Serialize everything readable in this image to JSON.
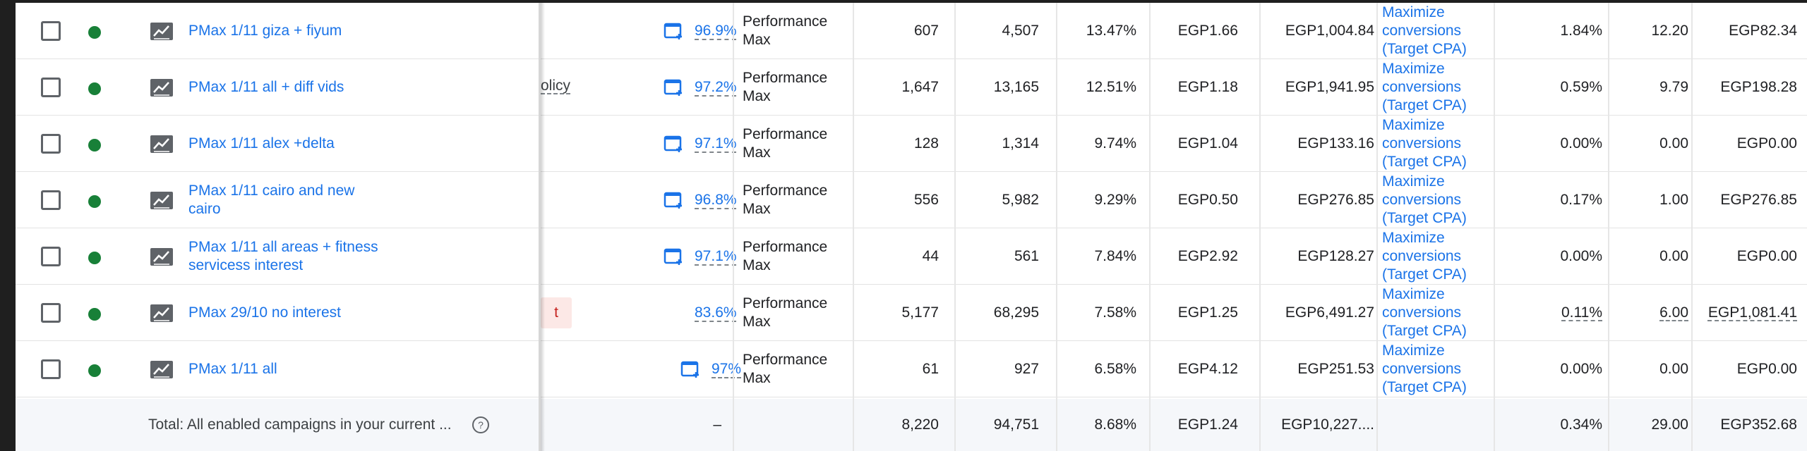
{
  "rows": [
    {
      "name_line1": "PMax 1/11 giza + fiyum",
      "name_line2": "",
      "optimization": "96.9%",
      "type_line1": "Performance",
      "type_line2": "Max",
      "conversions": "607",
      "clicks": "4,507",
      "ctr": "13.47%",
      "avg_cpc": "EGP1.66",
      "cost": "EGP1,004.84",
      "bid_line1": "Maximize",
      "bid_line2": "conversions",
      "bid_line3": "(Target CPA)",
      "conv_rate": "1.84%",
      "conversions2": "12.20",
      "cost_per_conv": "EGP82.34",
      "fragment": ""
    },
    {
      "name_line1": "PMax 1/11 all + diff vids",
      "name_line2": "",
      "optimization": "97.2%",
      "type_line1": "Performance",
      "type_line2": "Max",
      "conversions": "1,647",
      "clicks": "13,165",
      "ctr": "12.51%",
      "avg_cpc": "EGP1.18",
      "cost": "EGP1,941.95",
      "bid_line1": "Maximize",
      "bid_line2": "conversions",
      "bid_line3": "(Target CPA)",
      "conv_rate": "0.59%",
      "conversions2": "9.79",
      "cost_per_conv": "EGP198.28",
      "fragment": "olicy"
    },
    {
      "name_line1": "PMax 1/11 alex +delta",
      "name_line2": "",
      "optimization": "97.1%",
      "type_line1": "Performance",
      "type_line2": "Max",
      "conversions": "128",
      "clicks": "1,314",
      "ctr": "9.74%",
      "avg_cpc": "EGP1.04",
      "cost": "EGP133.16",
      "bid_line1": "Maximize",
      "bid_line2": "conversions",
      "bid_line3": "(Target CPA)",
      "conv_rate": "0.00%",
      "conversions2": "0.00",
      "cost_per_conv": "EGP0.00",
      "fragment": ""
    },
    {
      "name_line1": "PMax 1/11 cairo and new",
      "name_line2": "cairo",
      "optimization": "96.8%",
      "type_line1": "Performance",
      "type_line2": "Max",
      "conversions": "556",
      "clicks": "5,982",
      "ctr": "9.29%",
      "avg_cpc": "EGP0.50",
      "cost": "EGP276.85",
      "bid_line1": "Maximize",
      "bid_line2": "conversions",
      "bid_line3": "(Target CPA)",
      "conv_rate": "0.17%",
      "conversions2": "1.00",
      "cost_per_conv": "EGP276.85",
      "fragment": ""
    },
    {
      "name_line1": "PMax 1/11 all areas + fitness",
      "name_line2": "servicess interest",
      "optimization": "97.1%",
      "type_line1": "Performance",
      "type_line2": "Max",
      "conversions": "44",
      "clicks": "561",
      "ctr": "7.84%",
      "avg_cpc": "EGP2.92",
      "cost": "EGP128.27",
      "bid_line1": "Maximize",
      "bid_line2": "conversions",
      "bid_line3": "(Target CPA)",
      "conv_rate": "0.00%",
      "conversions2": "0.00",
      "cost_per_conv": "EGP0.00",
      "fragment": ""
    },
    {
      "name_line1": "PMax 29/10 no interest",
      "name_line2": "",
      "optimization": "83.6%",
      "type_line1": "Performance",
      "type_line2": "Max",
      "conversions": "5,177",
      "clicks": "68,295",
      "ctr": "7.58%",
      "avg_cpc": "EGP1.25",
      "cost": "EGP6,491.27",
      "bid_line1": "Maximize",
      "bid_line2": "conversions",
      "bid_line3": "(Target CPA)",
      "conv_rate": "0.11%",
      "conversions2": "6.00",
      "cost_per_conv": "EGP1,081.41",
      "fragment": "t"
    },
    {
      "name_line1": "PMax 1/11 all",
      "name_line2": "",
      "optimization": "97%",
      "type_line1": "Performance",
      "type_line2": "Max",
      "conversions": "61",
      "clicks": "927",
      "ctr": "6.58%",
      "avg_cpc": "EGP4.12",
      "cost": "EGP251.53",
      "bid_line1": "Maximize",
      "bid_line2": "conversions",
      "bid_line3": "(Target CPA)",
      "conv_rate": "0.00%",
      "conversions2": "0.00",
      "cost_per_conv": "EGP0.00",
      "fragment": ""
    }
  ],
  "total": {
    "label": "Total: All enabled campaigns in your current ...",
    "optimization": "–",
    "conversions": "8,220",
    "clicks": "94,751",
    "ctr": "8.68%",
    "avg_cpc": "EGP1.24",
    "cost": "EGP10,227....",
    "conv_rate": "0.34%",
    "conversions2": "29.00",
    "cost_per_conv": "EGP352.68"
  },
  "icons": {
    "status": "enabled-dot-icon",
    "campaign_type": "performance-max-icon",
    "optimization": "recommendation-icon",
    "help": "help-icon"
  },
  "colors": {
    "link": "#1a73e8",
    "status_enabled": "#188038",
    "badge_bg": "#fce8e6",
    "badge_text": "#c5221f"
  }
}
